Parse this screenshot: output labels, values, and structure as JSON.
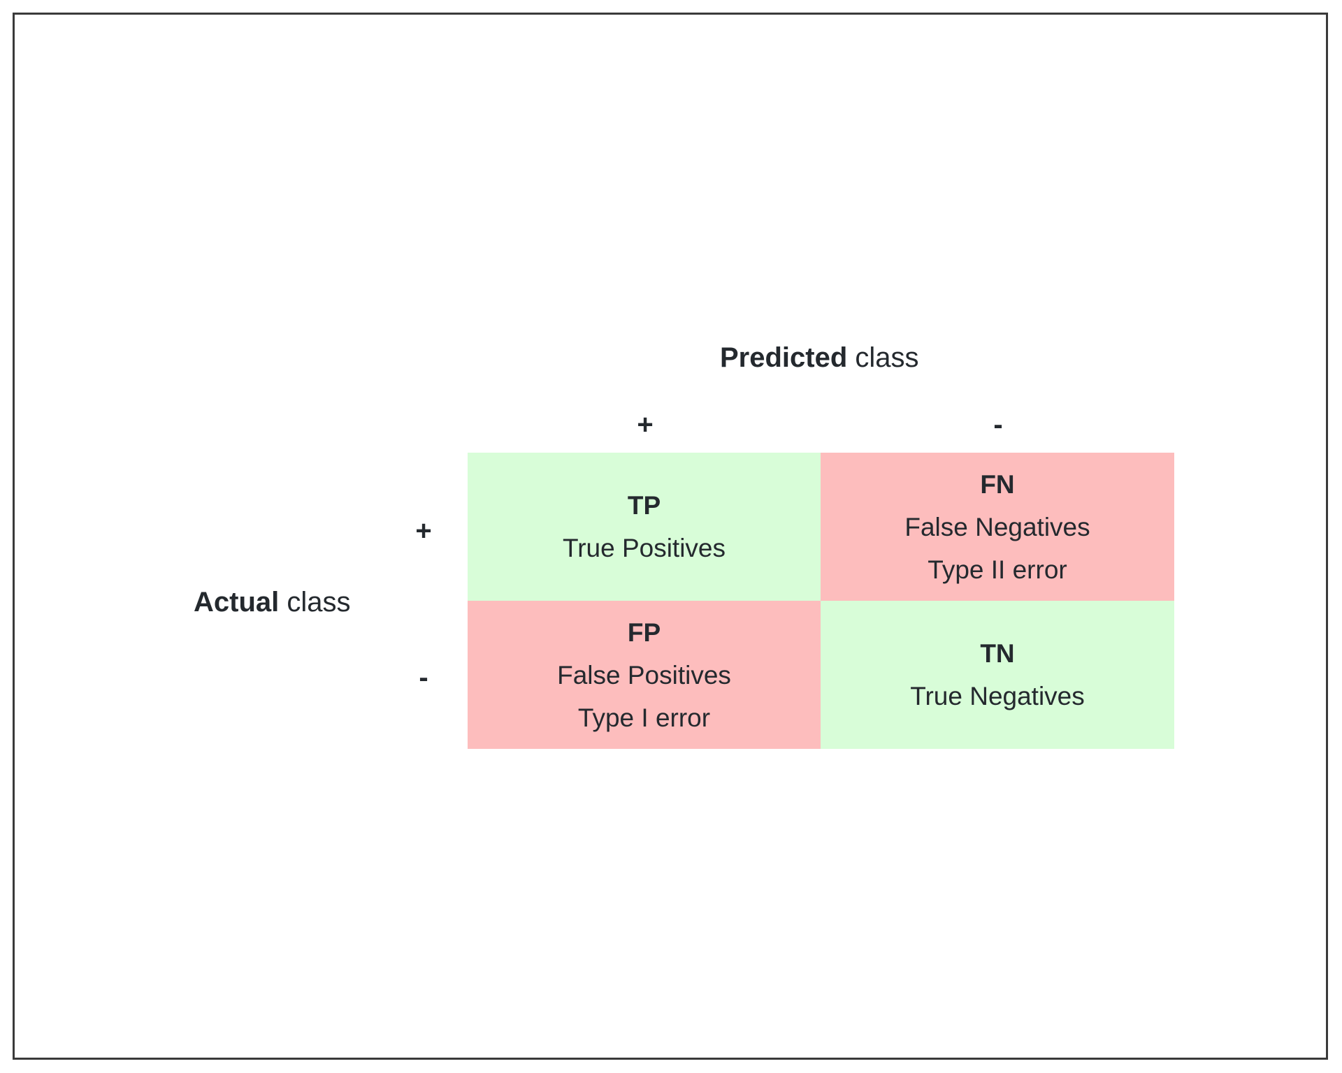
{
  "predicted": {
    "title_bold": "Predicted",
    "title_rest": " class",
    "positive": "+",
    "negative": "-"
  },
  "actual": {
    "title_bold": "Actual",
    "title_rest": " class",
    "positive": "+",
    "negative": "-"
  },
  "colors": {
    "correct": "#d8fdd8",
    "error": "#fdbdbd"
  },
  "cells": {
    "tp": {
      "abbr": "TP",
      "name": "True Positives"
    },
    "fn": {
      "abbr": "FN",
      "name": "False Negatives",
      "note": "Type II error"
    },
    "fp": {
      "abbr": "FP",
      "name": "False Positives",
      "note": "Type I error"
    },
    "tn": {
      "abbr": "TN",
      "name": "True Negatives"
    }
  }
}
